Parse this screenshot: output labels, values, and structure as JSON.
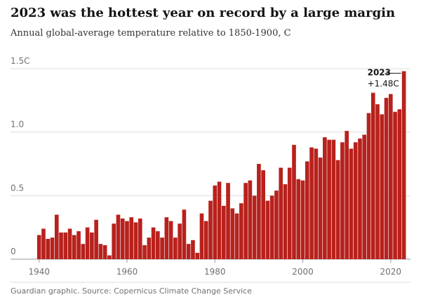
{
  "chart_data": {
    "type": "bar",
    "title": "2023 was the hottest year on record by a large margin",
    "subtitle": "Annual global-average temperature relative to 1850-1900, C",
    "source": "Guardian graphic. Source: Copernicus Climate Change Service",
    "annotation": {
      "year": "2023",
      "value": "+1.48C"
    },
    "color": "#b8211c",
    "x": [
      1940,
      1941,
      1942,
      1943,
      1944,
      1945,
      1946,
      1947,
      1948,
      1949,
      1950,
      1951,
      1952,
      1953,
      1954,
      1955,
      1956,
      1957,
      1958,
      1959,
      1960,
      1961,
      1962,
      1963,
      1964,
      1965,
      1966,
      1967,
      1968,
      1969,
      1970,
      1971,
      1972,
      1973,
      1974,
      1975,
      1976,
      1977,
      1978,
      1979,
      1980,
      1981,
      1982,
      1983,
      1984,
      1985,
      1986,
      1987,
      1988,
      1989,
      1990,
      1991,
      1992,
      1993,
      1994,
      1995,
      1996,
      1997,
      1998,
      1999,
      2000,
      2001,
      2002,
      2003,
      2004,
      2005,
      2006,
      2007,
      2008,
      2009,
      2010,
      2011,
      2012,
      2013,
      2014,
      2015,
      2016,
      2017,
      2018,
      2019,
      2020,
      2021,
      2022,
      2023
    ],
    "values": [
      0.19,
      0.24,
      0.16,
      0.17,
      0.35,
      0.21,
      0.21,
      0.24,
      0.19,
      0.22,
      0.12,
      0.25,
      0.21,
      0.31,
      0.12,
      0.11,
      0.03,
      0.28,
      0.35,
      0.32,
      0.3,
      0.33,
      0.29,
      0.32,
      0.11,
      0.17,
      0.25,
      0.22,
      0.17,
      0.33,
      0.3,
      0.17,
      0.28,
      0.39,
      0.12,
      0.15,
      0.05,
      0.36,
      0.3,
      0.46,
      0.58,
      0.61,
      0.42,
      0.6,
      0.4,
      0.36,
      0.44,
      0.6,
      0.62,
      0.5,
      0.75,
      0.7,
      0.46,
      0.5,
      0.54,
      0.72,
      0.59,
      0.72,
      0.9,
      0.63,
      0.62,
      0.77,
      0.88,
      0.87,
      0.8,
      0.96,
      0.94,
      0.94,
      0.78,
      0.92,
      1.01,
      0.87,
      0.92,
      0.95,
      0.98,
      1.15,
      1.31,
      1.22,
      1.14,
      1.27,
      1.3,
      1.16,
      1.18,
      1.48
    ],
    "xlim": [
      1933.5,
      2024.5
    ],
    "xticks": [
      1940,
      1960,
      1980,
      2000,
      2020
    ],
    "ylim": [
      0,
      1.5
    ],
    "yticks": [
      0,
      0.5,
      {
        "value": 1,
        "label": "1.0"
      },
      {
        "value": 1.5,
        "label": "1.5C"
      }
    ],
    "grid": true
  }
}
